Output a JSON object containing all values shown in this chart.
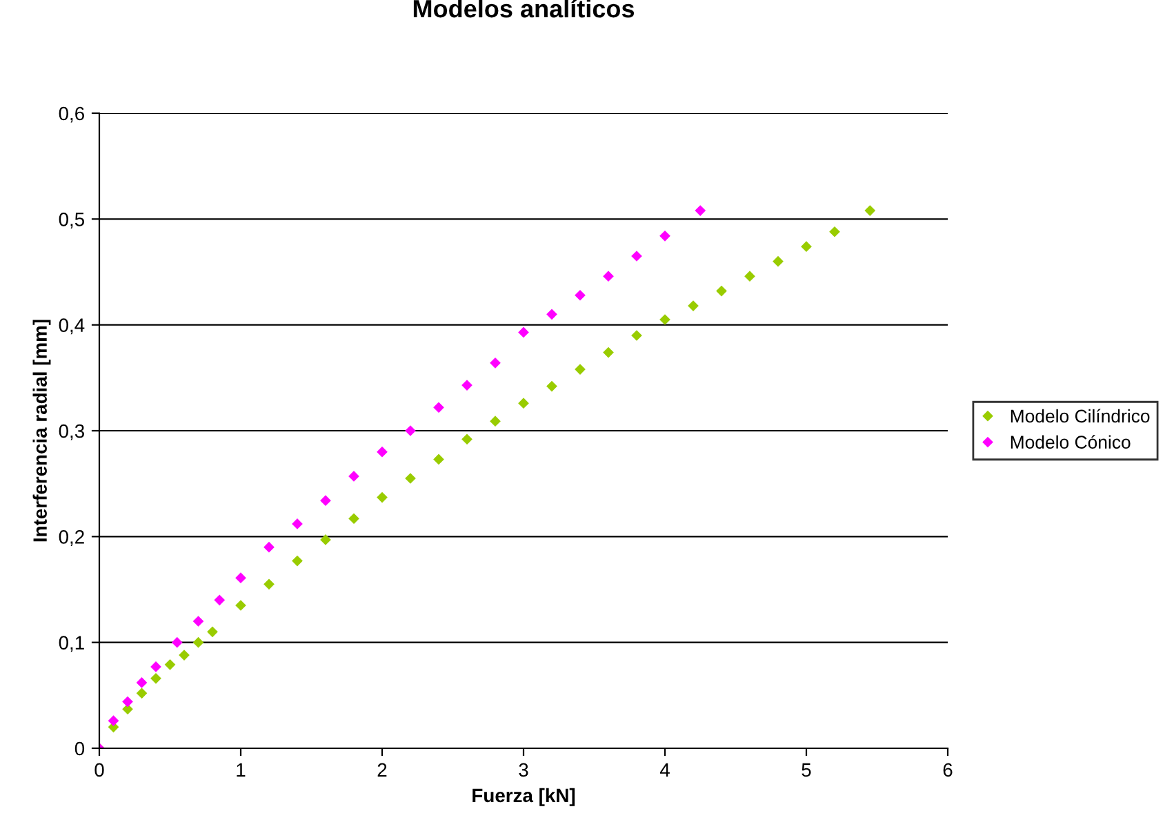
{
  "chart_data": {
    "type": "scatter",
    "title": "Modelos analíticos",
    "xlabel": "Fuerza [kN]",
    "ylabel": "Interferencia radial [mm]",
    "xlim": [
      0,
      6
    ],
    "xticks": [
      0,
      1,
      2,
      3,
      4,
      5,
      6
    ],
    "ylim": [
      0,
      0.6
    ],
    "yticks": [
      {
        "value": 0,
        "label": "0"
      },
      {
        "value": 0.1,
        "label": "0,1"
      },
      {
        "value": 0.2,
        "label": "0,2"
      },
      {
        "value": 0.3,
        "label": "0,3"
      },
      {
        "value": 0.4,
        "label": "0,4"
      },
      {
        "value": 0.5,
        "label": "0,5"
      },
      {
        "value": 0.6,
        "label": "0,6"
      }
    ],
    "grid": "y",
    "legend": "right",
    "marker": "diamond",
    "series": [
      {
        "name": "Modelo Cilíndrico",
        "color": "#99cc00",
        "x": [
          0,
          0.1,
          0.2,
          0.3,
          0.4,
          0.5,
          0.6,
          0.7,
          0.8,
          1.0,
          1.2,
          1.4,
          1.6,
          1.8,
          2.0,
          2.2,
          2.4,
          2.6,
          2.8,
          3.0,
          3.2,
          3.4,
          3.6,
          3.8,
          4.0,
          4.2,
          4.4,
          4.6,
          4.8,
          5.0,
          5.2,
          5.45
        ],
        "values": [
          0,
          0.02,
          0.037,
          0.052,
          0.066,
          0.079,
          0.088,
          0.1,
          0.11,
          0.135,
          0.155,
          0.177,
          0.197,
          0.217,
          0.237,
          0.255,
          0.273,
          0.292,
          0.309,
          0.326,
          0.342,
          0.358,
          0.374,
          0.39,
          0.405,
          0.418,
          0.432,
          0.446,
          0.46,
          0.474,
          0.488,
          0.508
        ]
      },
      {
        "name": "Modelo Cónico",
        "color": "#ff00ff",
        "x": [
          0,
          0.1,
          0.2,
          0.3,
          0.4,
          0.55,
          0.7,
          0.85,
          1.0,
          1.2,
          1.4,
          1.6,
          1.8,
          2.0,
          2.2,
          2.4,
          2.6,
          2.8,
          3.0,
          3.2,
          3.4,
          3.6,
          3.8,
          4.0,
          4.25
        ],
        "values": [
          0,
          0.026,
          0.044,
          0.062,
          0.077,
          0.1,
          0.12,
          0.14,
          0.161,
          0.19,
          0.212,
          0.234,
          0.257,
          0.28,
          0.3,
          0.322,
          0.343,
          0.364,
          0.393,
          0.41,
          0.428,
          0.446,
          0.465,
          0.484,
          0.508
        ]
      }
    ]
  }
}
